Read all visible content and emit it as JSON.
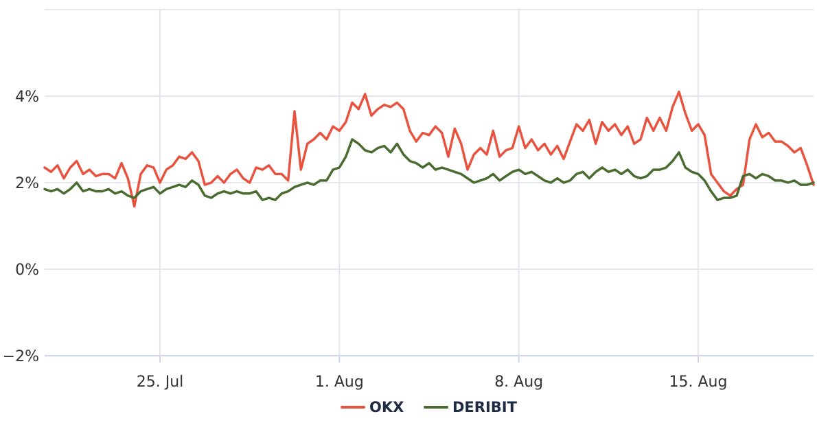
{
  "chart_data": {
    "type": "line",
    "title": "",
    "xlabel": "",
    "ylabel": "",
    "x_range": [
      "2023-07-20T12:00",
      "2023-08-19T12:00"
    ],
    "ylim": [
      -2,
      6
    ],
    "y_ticks": [
      -2,
      0,
      2,
      4
    ],
    "y_tick_format": "%",
    "x_ticks": [
      {
        "date": "2023-07-25",
        "label": "25. Jul"
      },
      {
        "date": "2023-08-01",
        "label": "1. Aug"
      },
      {
        "date": "2023-08-08",
        "label": "8. Aug"
      },
      {
        "date": "2023-08-15",
        "label": "15. Aug"
      }
    ],
    "grid": true,
    "legend_position": "bottom-center",
    "series": [
      {
        "name": "OKX",
        "color": "#e8533f",
        "points": [
          [
            "2023-07-20T12:00",
            2.35
          ],
          [
            "2023-07-20T18:00",
            2.25
          ],
          [
            "2023-07-21T00:00",
            2.4
          ],
          [
            "2023-07-21T06:00",
            2.1
          ],
          [
            "2023-07-21T12:00",
            2.35
          ],
          [
            "2023-07-21T18:00",
            2.5
          ],
          [
            "2023-07-22T00:00",
            2.2
          ],
          [
            "2023-07-22T06:00",
            2.3
          ],
          [
            "2023-07-22T12:00",
            2.15
          ],
          [
            "2023-07-22T18:00",
            2.2
          ],
          [
            "2023-07-23T00:00",
            2.2
          ],
          [
            "2023-07-23T06:00",
            2.1
          ],
          [
            "2023-07-23T12:00",
            2.45
          ],
          [
            "2023-07-23T18:00",
            2.1
          ],
          [
            "2023-07-24T00:00",
            1.45
          ],
          [
            "2023-07-24T06:00",
            2.2
          ],
          [
            "2023-07-24T12:00",
            2.4
          ],
          [
            "2023-07-24T18:00",
            2.35
          ],
          [
            "2023-07-25T00:00",
            2.0
          ],
          [
            "2023-07-25T06:00",
            2.3
          ],
          [
            "2023-07-25T12:00",
            2.4
          ],
          [
            "2023-07-25T18:00",
            2.6
          ],
          [
            "2023-07-26T00:00",
            2.55
          ],
          [
            "2023-07-26T06:00",
            2.7
          ],
          [
            "2023-07-26T12:00",
            2.5
          ],
          [
            "2023-07-26T18:00",
            1.95
          ],
          [
            "2023-07-27T00:00",
            2.0
          ],
          [
            "2023-07-27T06:00",
            2.15
          ],
          [
            "2023-07-27T12:00",
            2.0
          ],
          [
            "2023-07-27T18:00",
            2.2
          ],
          [
            "2023-07-28T00:00",
            2.3
          ],
          [
            "2023-07-28T06:00",
            2.1
          ],
          [
            "2023-07-28T12:00",
            2.0
          ],
          [
            "2023-07-28T18:00",
            2.35
          ],
          [
            "2023-07-29T00:00",
            2.3
          ],
          [
            "2023-07-29T06:00",
            2.4
          ],
          [
            "2023-07-29T12:00",
            2.2
          ],
          [
            "2023-07-29T18:00",
            2.2
          ],
          [
            "2023-07-30T00:00",
            2.05
          ],
          [
            "2023-07-30T06:00",
            3.65
          ],
          [
            "2023-07-30T12:00",
            2.3
          ],
          [
            "2023-07-30T18:00",
            2.9
          ],
          [
            "2023-07-31T00:00",
            3.0
          ],
          [
            "2023-07-31T06:00",
            3.15
          ],
          [
            "2023-07-31T12:00",
            3.0
          ],
          [
            "2023-07-31T18:00",
            3.3
          ],
          [
            "2023-08-01T00:00",
            3.2
          ],
          [
            "2023-08-01T06:00",
            3.4
          ],
          [
            "2023-08-01T12:00",
            3.85
          ],
          [
            "2023-08-01T18:00",
            3.7
          ],
          [
            "2023-08-02T00:00",
            4.05
          ],
          [
            "2023-08-02T06:00",
            3.55
          ],
          [
            "2023-08-02T12:00",
            3.7
          ],
          [
            "2023-08-02T18:00",
            3.8
          ],
          [
            "2023-08-03T00:00",
            3.75
          ],
          [
            "2023-08-03T06:00",
            3.85
          ],
          [
            "2023-08-03T12:00",
            3.7
          ],
          [
            "2023-08-03T18:00",
            3.2
          ],
          [
            "2023-08-04T00:00",
            2.95
          ],
          [
            "2023-08-04T06:00",
            3.15
          ],
          [
            "2023-08-04T12:00",
            3.1
          ],
          [
            "2023-08-04T18:00",
            3.3
          ],
          [
            "2023-08-05T00:00",
            3.15
          ],
          [
            "2023-08-05T06:00",
            2.6
          ],
          [
            "2023-08-05T12:00",
            3.25
          ],
          [
            "2023-08-05T18:00",
            2.9
          ],
          [
            "2023-08-06T00:00",
            2.3
          ],
          [
            "2023-08-06T06:00",
            2.65
          ],
          [
            "2023-08-06T12:00",
            2.8
          ],
          [
            "2023-08-06T18:00",
            2.65
          ],
          [
            "2023-08-07T00:00",
            3.2
          ],
          [
            "2023-08-07T06:00",
            2.6
          ],
          [
            "2023-08-07T12:00",
            2.75
          ],
          [
            "2023-08-07T18:00",
            2.8
          ],
          [
            "2023-08-08T00:00",
            3.3
          ],
          [
            "2023-08-08T06:00",
            2.8
          ],
          [
            "2023-08-08T12:00",
            3.0
          ],
          [
            "2023-08-08T18:00",
            2.75
          ],
          [
            "2023-08-09T00:00",
            2.9
          ],
          [
            "2023-08-09T06:00",
            2.65
          ],
          [
            "2023-08-09T12:00",
            2.85
          ],
          [
            "2023-08-09T18:00",
            2.55
          ],
          [
            "2023-08-10T00:00",
            2.95
          ],
          [
            "2023-08-10T06:00",
            3.35
          ],
          [
            "2023-08-10T12:00",
            3.2
          ],
          [
            "2023-08-10T18:00",
            3.45
          ],
          [
            "2023-08-11T00:00",
            2.9
          ],
          [
            "2023-08-11T06:00",
            3.4
          ],
          [
            "2023-08-11T12:00",
            3.2
          ],
          [
            "2023-08-11T18:00",
            3.35
          ],
          [
            "2023-08-12T00:00",
            3.1
          ],
          [
            "2023-08-12T06:00",
            3.3
          ],
          [
            "2023-08-12T12:00",
            2.9
          ],
          [
            "2023-08-12T18:00",
            3.0
          ],
          [
            "2023-08-13T00:00",
            3.5
          ],
          [
            "2023-08-13T06:00",
            3.2
          ],
          [
            "2023-08-13T12:00",
            3.5
          ],
          [
            "2023-08-13T18:00",
            3.2
          ],
          [
            "2023-08-14T00:00",
            3.75
          ],
          [
            "2023-08-14T06:00",
            4.1
          ],
          [
            "2023-08-14T12:00",
            3.6
          ],
          [
            "2023-08-14T18:00",
            3.2
          ],
          [
            "2023-08-15T00:00",
            3.35
          ],
          [
            "2023-08-15T06:00",
            3.1
          ],
          [
            "2023-08-15T12:00",
            2.2
          ],
          [
            "2023-08-15T18:00",
            2.0
          ],
          [
            "2023-08-16T00:00",
            1.8
          ],
          [
            "2023-08-16T06:00",
            1.7
          ],
          [
            "2023-08-16T12:00",
            1.85
          ],
          [
            "2023-08-16T18:00",
            1.95
          ],
          [
            "2023-08-17T00:00",
            3.0
          ],
          [
            "2023-08-17T06:00",
            3.35
          ],
          [
            "2023-08-17T12:00",
            3.05
          ],
          [
            "2023-08-17T18:00",
            3.15
          ],
          [
            "2023-08-18T00:00",
            2.95
          ],
          [
            "2023-08-18T06:00",
            2.95
          ],
          [
            "2023-08-18T12:00",
            2.85
          ],
          [
            "2023-08-18T18:00",
            2.7
          ],
          [
            "2023-08-19T00:00",
            2.8
          ],
          [
            "2023-08-19T06:00",
            2.4
          ],
          [
            "2023-08-19T12:00",
            1.95
          ]
        ]
      },
      {
        "name": "DERIBIT",
        "color": "#4a6b2f",
        "points": [
          [
            "2023-07-20T12:00",
            1.85
          ],
          [
            "2023-07-20T18:00",
            1.8
          ],
          [
            "2023-07-21T00:00",
            1.85
          ],
          [
            "2023-07-21T06:00",
            1.75
          ],
          [
            "2023-07-21T12:00",
            1.85
          ],
          [
            "2023-07-21T18:00",
            2.0
          ],
          [
            "2023-07-22T00:00",
            1.8
          ],
          [
            "2023-07-22T06:00",
            1.85
          ],
          [
            "2023-07-22T12:00",
            1.8
          ],
          [
            "2023-07-22T18:00",
            1.8
          ],
          [
            "2023-07-23T00:00",
            1.85
          ],
          [
            "2023-07-23T06:00",
            1.75
          ],
          [
            "2023-07-23T12:00",
            1.8
          ],
          [
            "2023-07-23T18:00",
            1.7
          ],
          [
            "2023-07-24T00:00",
            1.65
          ],
          [
            "2023-07-24T06:00",
            1.8
          ],
          [
            "2023-07-24T12:00",
            1.85
          ],
          [
            "2023-07-24T18:00",
            1.9
          ],
          [
            "2023-07-25T00:00",
            1.75
          ],
          [
            "2023-07-25T06:00",
            1.85
          ],
          [
            "2023-07-25T12:00",
            1.9
          ],
          [
            "2023-07-25T18:00",
            1.95
          ],
          [
            "2023-07-26T00:00",
            1.9
          ],
          [
            "2023-07-26T06:00",
            2.05
          ],
          [
            "2023-07-26T12:00",
            1.95
          ],
          [
            "2023-07-26T18:00",
            1.7
          ],
          [
            "2023-07-27T00:00",
            1.65
          ],
          [
            "2023-07-27T06:00",
            1.75
          ],
          [
            "2023-07-27T12:00",
            1.8
          ],
          [
            "2023-07-27T18:00",
            1.75
          ],
          [
            "2023-07-28T00:00",
            1.8
          ],
          [
            "2023-07-28T06:00",
            1.75
          ],
          [
            "2023-07-28T12:00",
            1.75
          ],
          [
            "2023-07-28T18:00",
            1.8
          ],
          [
            "2023-07-29T00:00",
            1.6
          ],
          [
            "2023-07-29T06:00",
            1.65
          ],
          [
            "2023-07-29T12:00",
            1.6
          ],
          [
            "2023-07-29T18:00",
            1.75
          ],
          [
            "2023-07-30T00:00",
            1.8
          ],
          [
            "2023-07-30T06:00",
            1.9
          ],
          [
            "2023-07-30T12:00",
            1.95
          ],
          [
            "2023-07-30T18:00",
            2.0
          ],
          [
            "2023-07-31T00:00",
            1.95
          ],
          [
            "2023-07-31T06:00",
            2.05
          ],
          [
            "2023-07-31T12:00",
            2.05
          ],
          [
            "2023-07-31T18:00",
            2.3
          ],
          [
            "2023-08-01T00:00",
            2.35
          ],
          [
            "2023-08-01T06:00",
            2.6
          ],
          [
            "2023-08-01T12:00",
            3.0
          ],
          [
            "2023-08-01T18:00",
            2.9
          ],
          [
            "2023-08-02T00:00",
            2.75
          ],
          [
            "2023-08-02T06:00",
            2.7
          ],
          [
            "2023-08-02T12:00",
            2.8
          ],
          [
            "2023-08-02T18:00",
            2.85
          ],
          [
            "2023-08-03T00:00",
            2.7
          ],
          [
            "2023-08-03T06:00",
            2.9
          ],
          [
            "2023-08-03T12:00",
            2.65
          ],
          [
            "2023-08-03T18:00",
            2.5
          ],
          [
            "2023-08-04T00:00",
            2.45
          ],
          [
            "2023-08-04T06:00",
            2.35
          ],
          [
            "2023-08-04T12:00",
            2.45
          ],
          [
            "2023-08-04T18:00",
            2.3
          ],
          [
            "2023-08-05T00:00",
            2.35
          ],
          [
            "2023-08-05T06:00",
            2.3
          ],
          [
            "2023-08-05T12:00",
            2.25
          ],
          [
            "2023-08-05T18:00",
            2.2
          ],
          [
            "2023-08-06T00:00",
            2.1
          ],
          [
            "2023-08-06T06:00",
            2.0
          ],
          [
            "2023-08-06T12:00",
            2.05
          ],
          [
            "2023-08-06T18:00",
            2.1
          ],
          [
            "2023-08-07T00:00",
            2.2
          ],
          [
            "2023-08-07T06:00",
            2.05
          ],
          [
            "2023-08-07T12:00",
            2.15
          ],
          [
            "2023-08-07T18:00",
            2.25
          ],
          [
            "2023-08-08T00:00",
            2.3
          ],
          [
            "2023-08-08T06:00",
            2.2
          ],
          [
            "2023-08-08T12:00",
            2.25
          ],
          [
            "2023-08-08T18:00",
            2.15
          ],
          [
            "2023-08-09T00:00",
            2.05
          ],
          [
            "2023-08-09T06:00",
            2.0
          ],
          [
            "2023-08-09T12:00",
            2.1
          ],
          [
            "2023-08-09T18:00",
            2.0
          ],
          [
            "2023-08-10T00:00",
            2.05
          ],
          [
            "2023-08-10T06:00",
            2.2
          ],
          [
            "2023-08-10T12:00",
            2.25
          ],
          [
            "2023-08-10T18:00",
            2.1
          ],
          [
            "2023-08-11T00:00",
            2.25
          ],
          [
            "2023-08-11T06:00",
            2.35
          ],
          [
            "2023-08-11T12:00",
            2.25
          ],
          [
            "2023-08-11T18:00",
            2.3
          ],
          [
            "2023-08-12T00:00",
            2.2
          ],
          [
            "2023-08-12T06:00",
            2.3
          ],
          [
            "2023-08-12T12:00",
            2.15
          ],
          [
            "2023-08-12T18:00",
            2.1
          ],
          [
            "2023-08-13T00:00",
            2.15
          ],
          [
            "2023-08-13T06:00",
            2.3
          ],
          [
            "2023-08-13T12:00",
            2.3
          ],
          [
            "2023-08-13T18:00",
            2.35
          ],
          [
            "2023-08-14T00:00",
            2.5
          ],
          [
            "2023-08-14T06:00",
            2.7
          ],
          [
            "2023-08-14T12:00",
            2.35
          ],
          [
            "2023-08-14T18:00",
            2.25
          ],
          [
            "2023-08-15T00:00",
            2.2
          ],
          [
            "2023-08-15T06:00",
            2.05
          ],
          [
            "2023-08-15T12:00",
            1.8
          ],
          [
            "2023-08-15T18:00",
            1.6
          ],
          [
            "2023-08-16T00:00",
            1.65
          ],
          [
            "2023-08-16T06:00",
            1.65
          ],
          [
            "2023-08-16T12:00",
            1.7
          ],
          [
            "2023-08-16T18:00",
            2.15
          ],
          [
            "2023-08-17T00:00",
            2.2
          ],
          [
            "2023-08-17T06:00",
            2.1
          ],
          [
            "2023-08-17T12:00",
            2.2
          ],
          [
            "2023-08-17T18:00",
            2.15
          ],
          [
            "2023-08-18T00:00",
            2.05
          ],
          [
            "2023-08-18T06:00",
            2.05
          ],
          [
            "2023-08-18T12:00",
            2.0
          ],
          [
            "2023-08-18T18:00",
            2.05
          ],
          [
            "2023-08-19T00:00",
            1.95
          ],
          [
            "2023-08-19T06:00",
            1.95
          ],
          [
            "2023-08-19T12:00",
            2.0
          ]
        ]
      }
    ]
  }
}
